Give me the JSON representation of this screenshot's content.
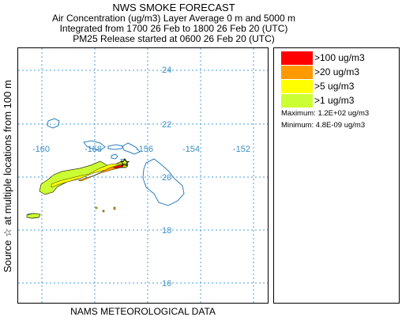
{
  "header": {
    "title": "NWS SMOKE FORECAST",
    "line2": "Air Concentration (ug/m3) Layer Average     0 m  and  5000 m",
    "line3": "Integrated from 1700 26 Feb to 1800 26 Feb 20 (UTC)",
    "line4": "PM25 Release started at 0600 26 Feb 20 (UTC)"
  },
  "side_label": "Source ☆   at multiple locations      from   100 m",
  "footer": "NAMS METEOROLOGICAL DATA",
  "map": {
    "lat_labels": [
      "24",
      "22",
      "20",
      "18",
      "16"
    ],
    "lon_labels": [
      "-160",
      "-158",
      "-156",
      "-154",
      "-152"
    ],
    "colors": {
      "grid": "#4a9fd8",
      "coast": "#2e7fbf",
      "labels": "#3a8fc4"
    },
    "source_marker": "star-icon"
  },
  "legend": {
    "items": [
      {
        "label": ">100 ug/m3",
        "color": "#ff0000"
      },
      {
        "label": ">20 ug/m3",
        "color": "#ff9900"
      },
      {
        "label": ">5 ug/m3",
        "color": "#ffff00"
      },
      {
        "label": ">1 ug/m3",
        "color": "#ccff33"
      }
    ],
    "maximum": "Maximum: 1.2E+02 ug/m3",
    "minimum": "Minimum: 4.8E-09 ug/m3"
  }
}
